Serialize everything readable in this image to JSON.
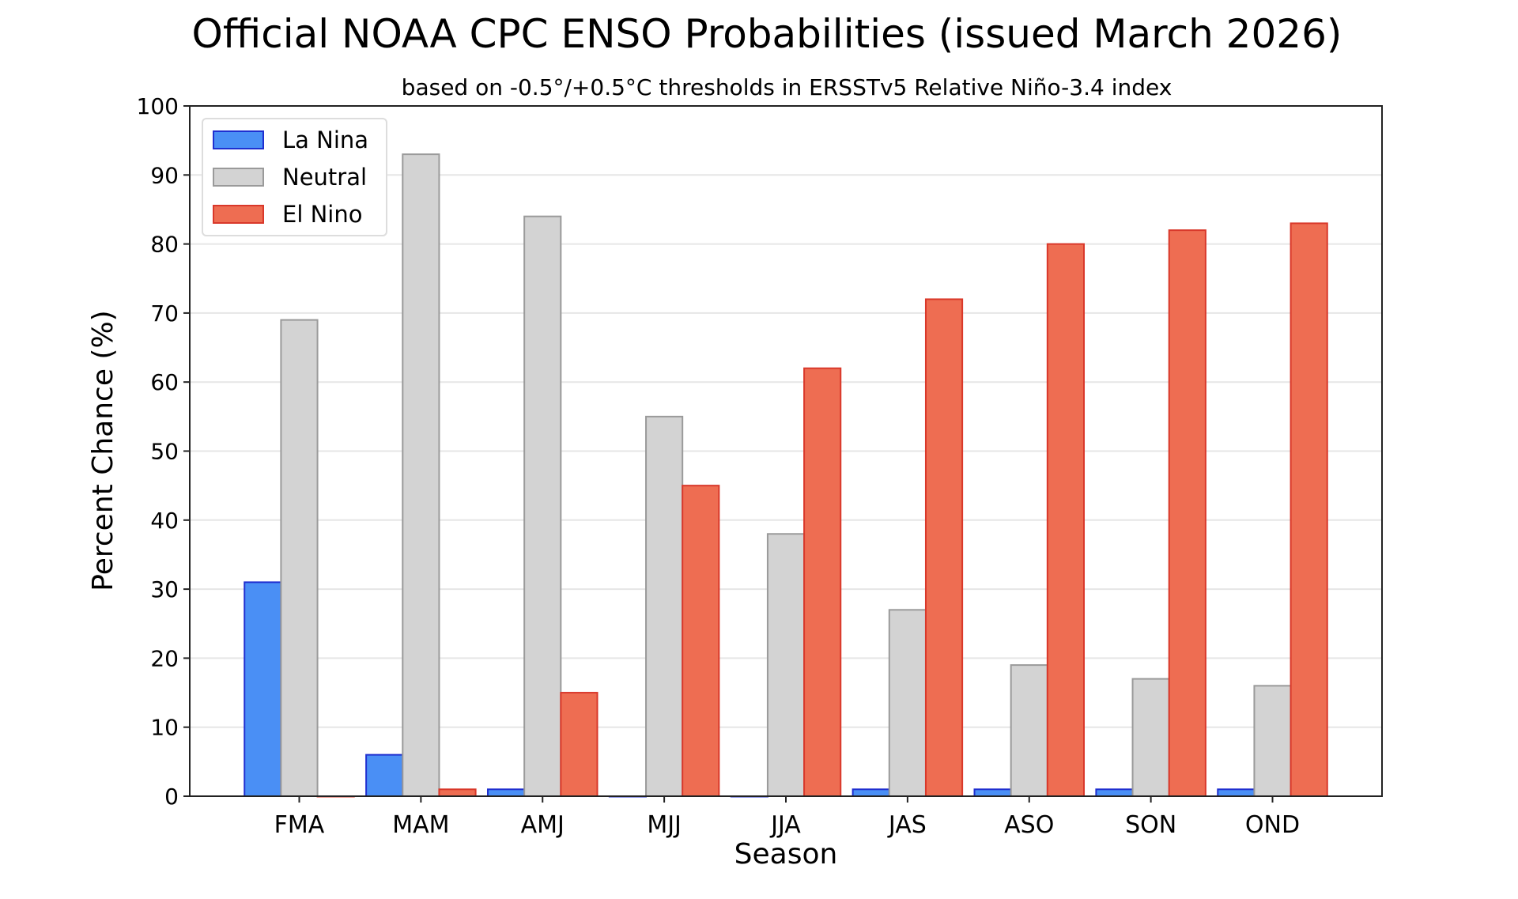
{
  "chart_data": {
    "type": "bar",
    "title": "Official NOAA CPC ENSO Probabilities (issued March 2026)",
    "subtitle": "based on -0.5°/+0.5°C thresholds in ERSSTv5 Relative Niño-3.4 index",
    "xlabel": "Season",
    "ylabel": "Percent Chance (%)",
    "ylim": [
      0,
      100
    ],
    "yticks": [
      0,
      10,
      20,
      30,
      40,
      50,
      60,
      70,
      80,
      90,
      100
    ],
    "grid": "horizontal",
    "legend": "top-left",
    "categories": [
      "FMA",
      "MAM",
      "AMJ",
      "MJJ",
      "JJA",
      "JAS",
      "ASO",
      "SON",
      "OND"
    ],
    "series": [
      {
        "name": "La Nina",
        "color": "#4a8ff5",
        "edge": "#1f2fd0",
        "values": [
          31,
          6,
          1,
          0,
          0,
          1,
          1,
          1,
          1
        ]
      },
      {
        "name": "Neutral",
        "color": "#d3d3d3",
        "edge": "#9a9a9a",
        "values": [
          69,
          93,
          84,
          55,
          38,
          27,
          19,
          17,
          16
        ]
      },
      {
        "name": "El Nino",
        "color": "#ee6d52",
        "edge": "#d9382a",
        "values": [
          0,
          1,
          15,
          45,
          62,
          72,
          80,
          82,
          83
        ]
      }
    ]
  }
}
